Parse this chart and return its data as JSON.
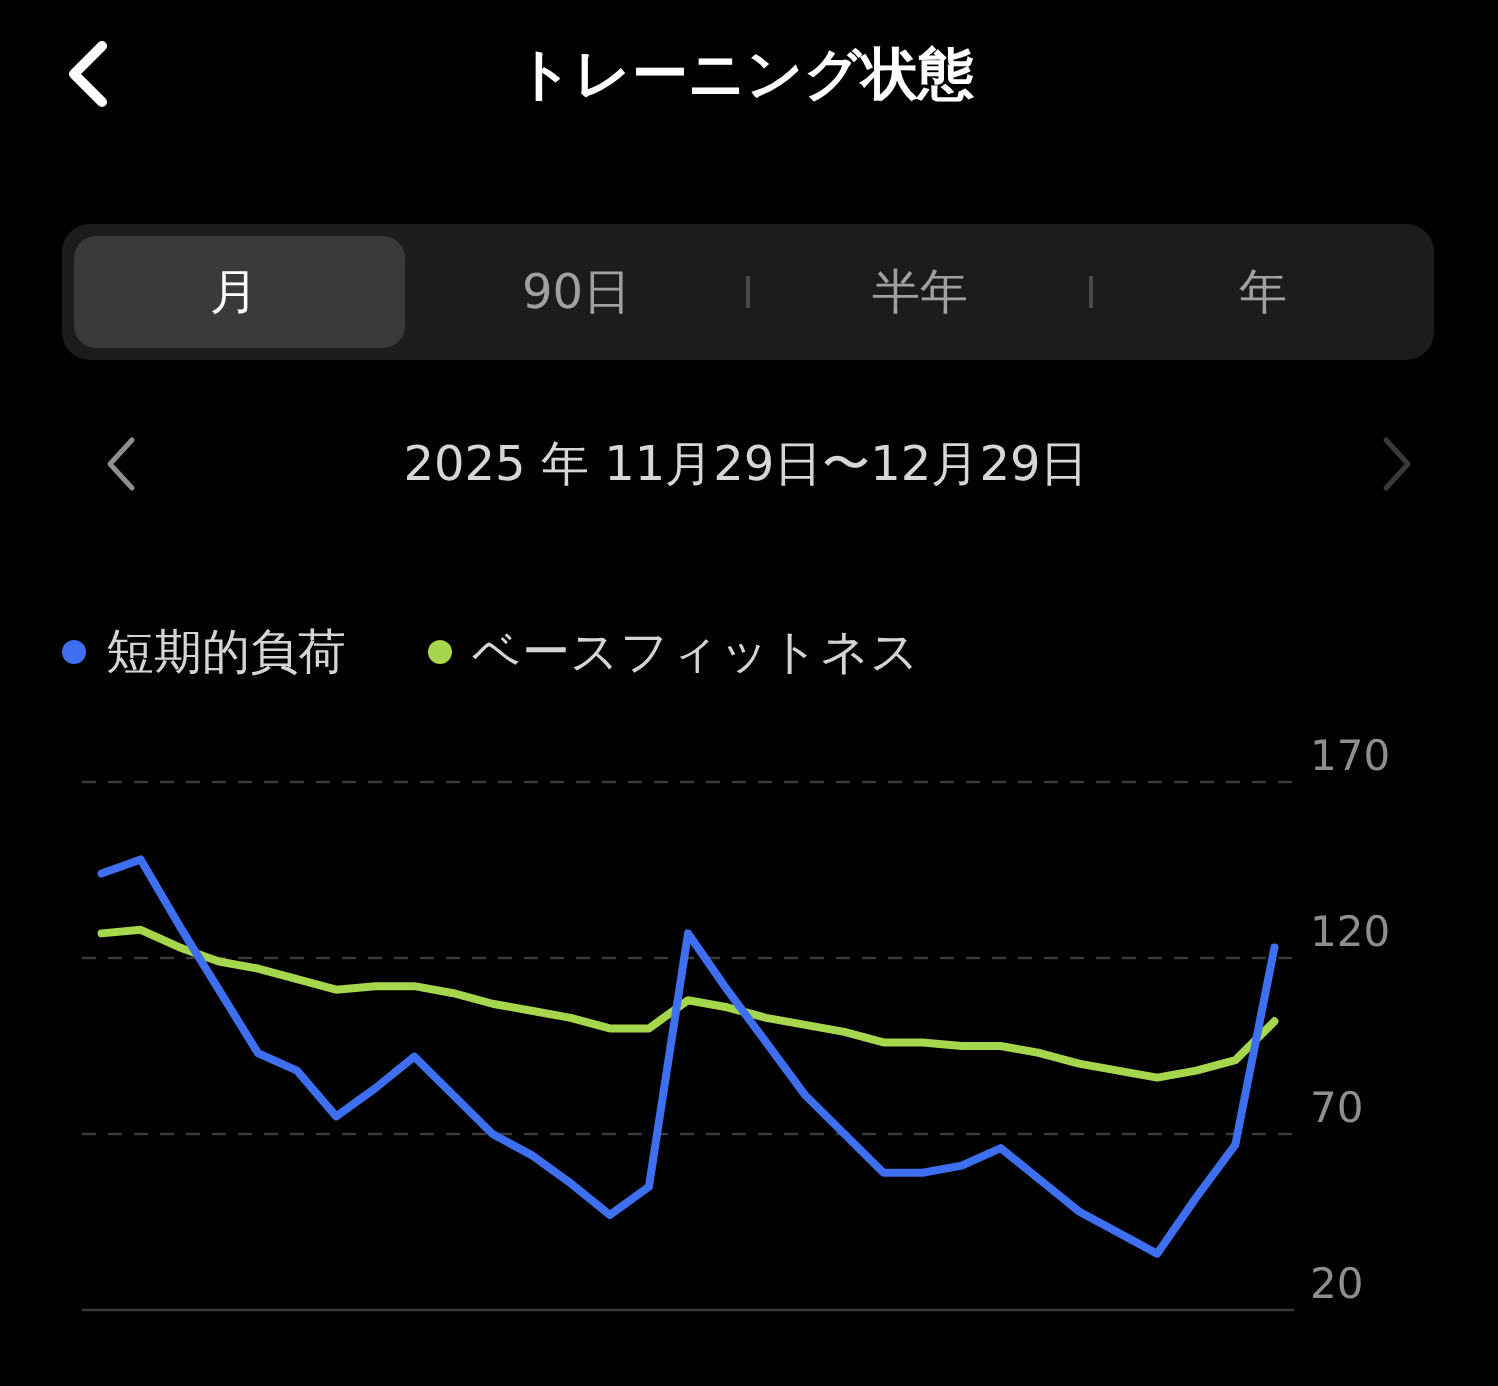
{
  "chart_data": {
    "type": "line",
    "title": "トレーニング状態",
    "subtitle": "2025 年 11月29日〜12月29日",
    "annotations": [
      "月",
      "90日",
      "半年",
      "年"
    ],
    "categories": [
      null,
      null,
      null,
      null,
      null,
      null,
      null,
      null,
      null,
      null,
      null,
      null,
      null,
      null,
      null,
      null,
      null,
      null,
      null,
      null,
      null,
      null,
      null,
      null,
      null,
      null,
      null,
      null,
      null,
      null,
      null
    ],
    "series": [
      {
        "name": "短期的負荷",
        "color": "#3d6ff0",
        "values": [
          144,
          148,
          129,
          111,
          93,
          88,
          75,
          83,
          92,
          81,
          70,
          64,
          56,
          47,
          55,
          127,
          111,
          96,
          81,
          70,
          59,
          59,
          61,
          66,
          57,
          48,
          42,
          36,
          52,
          67,
          123
        ]
      },
      {
        "name": "ベースフィットネス",
        "color": "#a5d64c",
        "values": [
          127,
          128,
          123,
          119,
          117,
          114,
          111,
          112,
          112,
          110,
          107,
          105,
          103,
          100,
          100,
          108,
          106,
          103,
          101,
          99,
          96,
          96,
          95,
          95,
          93,
          90,
          88,
          86,
          88,
          91,
          102
        ]
      }
    ],
    "ylim": [
      20,
      170
    ],
    "yticks": [
      20,
      70,
      120,
      170
    ],
    "grid": "y",
    "legend": "top left"
  }
}
